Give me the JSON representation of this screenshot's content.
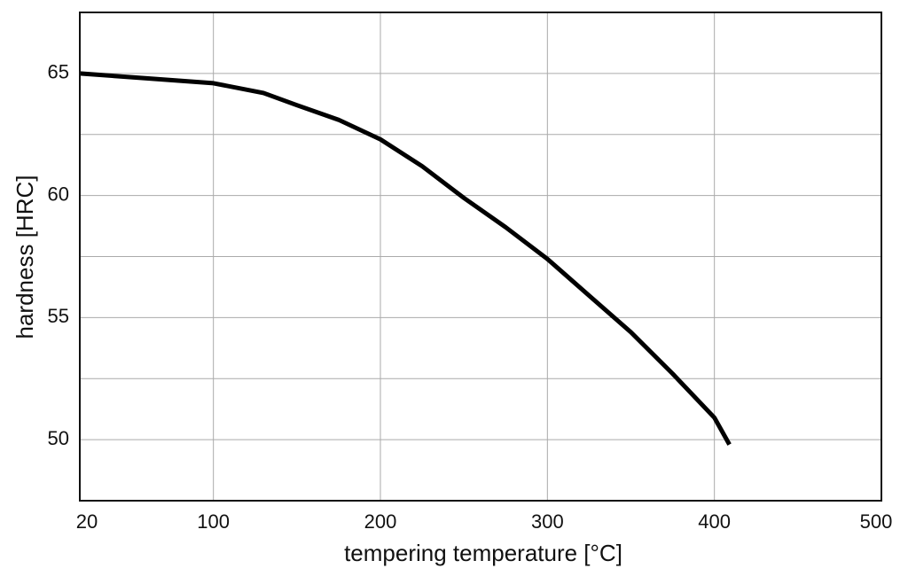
{
  "chart_data": {
    "type": "line",
    "x_label": "tempering temperature [°C]",
    "y_label": "hardness [HRC]",
    "x": [
      20,
      60,
      100,
      130,
      150,
      175,
      200,
      225,
      250,
      275,
      300,
      325,
      350,
      375,
      400,
      409
    ],
    "series": [
      {
        "color": "#000000",
        "values": [
          65.0,
          64.8,
          64.6,
          64.2,
          63.7,
          63.1,
          62.3,
          61.2,
          59.9,
          58.7,
          57.4,
          55.9,
          54.4,
          52.7,
          50.9,
          49.8
        ]
      }
    ],
    "xlim": [
      20,
      500
    ],
    "xticks": [
      20,
      100,
      200,
      300,
      400,
      500
    ],
    "ylim": [
      47.5,
      67.5
    ],
    "yticks": [
      50,
      55,
      60,
      65
    ],
    "minor_yticks": [
      52.5,
      57.5,
      62.5
    ],
    "grid": true
  }
}
